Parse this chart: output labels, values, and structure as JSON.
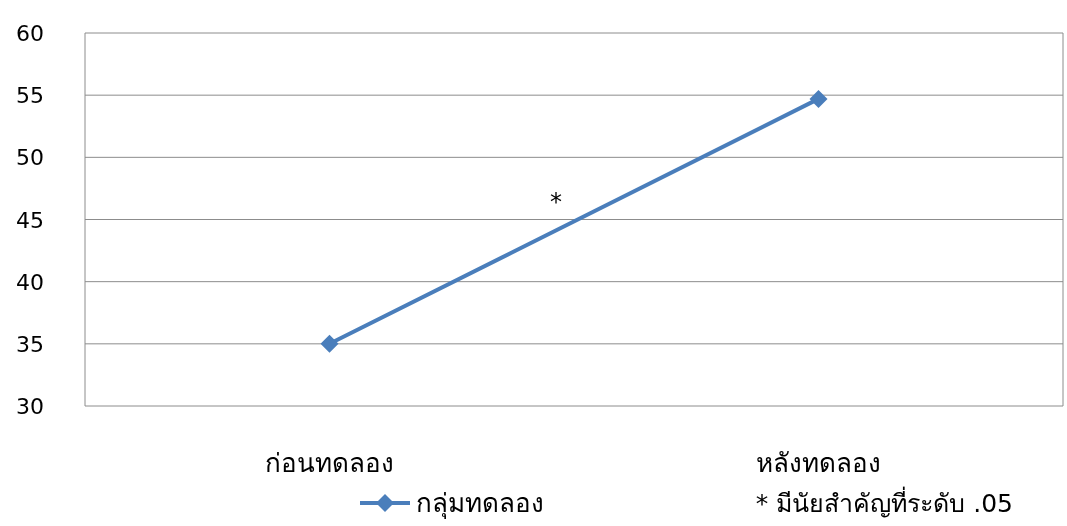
{
  "chart_data": {
    "type": "line",
    "categories": [
      "ก่อนทดลอง",
      "หลังทดลอง"
    ],
    "series": [
      {
        "name": "กลุ่มทดลอง",
        "color": "#4a7ebb",
        "values": [
          35,
          54.7
        ]
      }
    ],
    "ylim": [
      30,
      60
    ],
    "yticks": [
      30,
      35,
      40,
      45,
      50,
      55,
      60
    ],
    "grid": "y",
    "legend": "bottom",
    "marker": "diamond",
    "line_style": "solid",
    "annotations": [
      "*",
      "* มีนัยสำคัญที่ระดับ .05"
    ]
  }
}
